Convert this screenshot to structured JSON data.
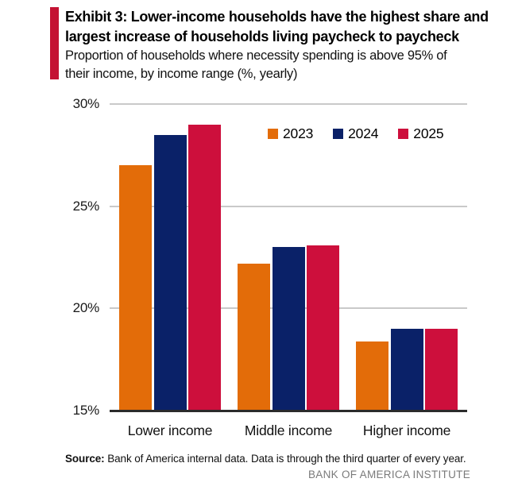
{
  "header": {
    "title_lines": [
      "Exhibit 3: Lower-income households have the highest share and",
      "largest increase of households living paycheck to paycheck"
    ],
    "subtitle_lines": [
      "Proportion of households where necessity spending is above 95% of",
      "their income, by income range (%, yearly)"
    ],
    "accent_color": "#C41233"
  },
  "chart_data": {
    "type": "bar",
    "title": "Proportion of households where necessity spending is above 95% of their income, by income range (%, yearly)",
    "categories": [
      "Lower income",
      "Middle income",
      "Higher income"
    ],
    "series": [
      {
        "name": "2023",
        "color": "#E36C09",
        "values": [
          27.0,
          22.2,
          18.4
        ]
      },
      {
        "name": "2024",
        "color": "#0A2168",
        "values": [
          28.5,
          23.0,
          19.0
        ]
      },
      {
        "name": "2025",
        "color": "#CD0F3C",
        "values": [
          29.0,
          23.1,
          19.0
        ]
      }
    ],
    "xlabel": "",
    "ylabel": "",
    "ylim": [
      15,
      30
    ],
    "yticks": [
      30,
      25,
      20,
      15
    ],
    "ytick_labels": [
      "30%",
      "25%",
      "20%",
      "15%"
    ],
    "grid": true,
    "legend_position": "top-right",
    "gridline_color": "#C9C9C9",
    "baseline_color": "#2B2B2B"
  },
  "footer": {
    "source_label": "Source:",
    "source_text": " Bank of America internal data. Data is through the third quarter of every year.",
    "institute": "BANK OF AMERICA INSTITUTE"
  }
}
